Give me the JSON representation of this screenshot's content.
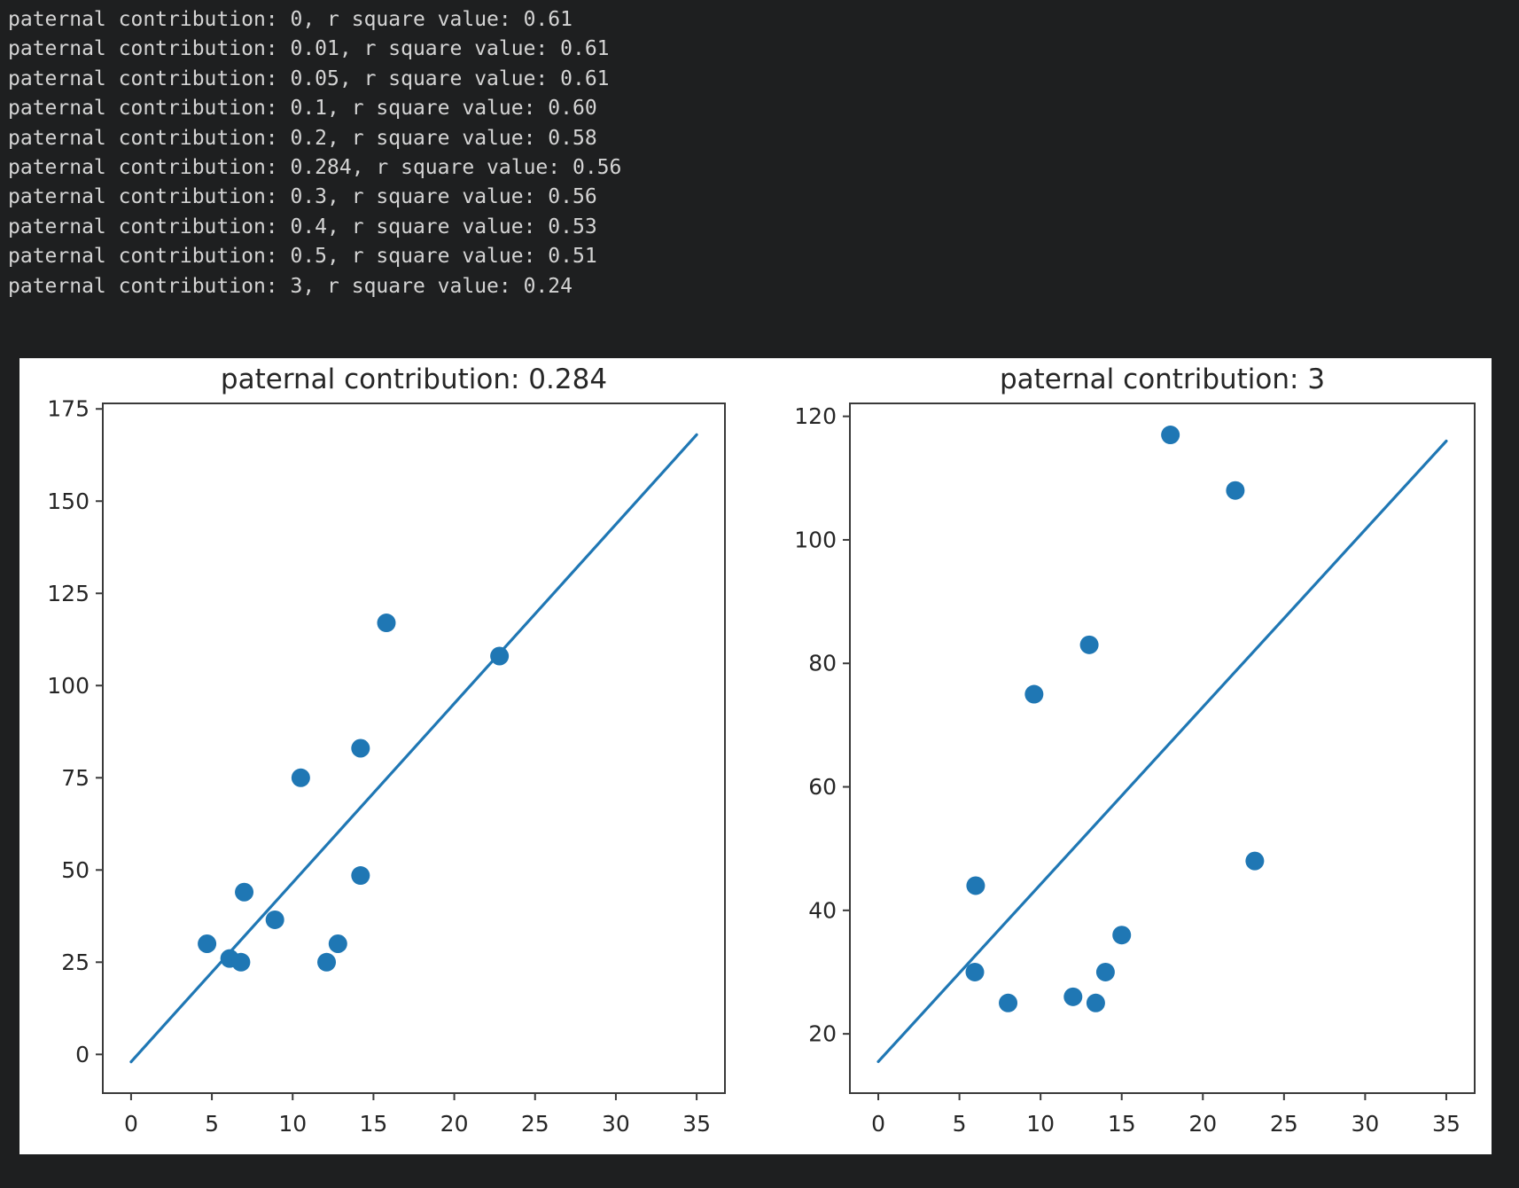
{
  "console": {
    "lines": [
      "paternal contribution: 0, r square value: 0.61",
      "paternal contribution: 0.01, r square value: 0.61",
      "paternal contribution: 0.05, r square value: 0.61",
      "paternal contribution: 0.1, r square value: 0.60",
      "paternal contribution: 0.2, r square value: 0.58",
      "paternal contribution: 0.284, r square value: 0.56",
      "paternal contribution: 0.3, r square value: 0.56",
      "paternal contribution: 0.4, r square value: 0.53",
      "paternal contribution: 0.5, r square value: 0.51",
      "paternal contribution: 3, r square value: 0.24"
    ]
  },
  "colors": {
    "page_bg": "#1e1f20",
    "terminal_text": "#d4d4d4",
    "figure_bg": "#ffffff",
    "accent_blue": "#1f77b4",
    "axis_text": "#262626",
    "frame": "#3a3a3a"
  },
  "chart_data": [
    {
      "type": "scatter",
      "title": "paternal contribution: 0.284",
      "xlabel": "",
      "ylabel": "",
      "xlim": [
        -1.75,
        36.75
      ],
      "ylim": [
        -10.5,
        176.5
      ],
      "x_ticks": [
        0,
        5,
        10,
        15,
        20,
        25,
        30,
        35
      ],
      "y_ticks": [
        0,
        25,
        50,
        75,
        100,
        125,
        150,
        175
      ],
      "grid": false,
      "legend": null,
      "points": [
        [
          4.7,
          30
        ],
        [
          6.1,
          26
        ],
        [
          6.8,
          25
        ],
        [
          7.0,
          44
        ],
        [
          8.9,
          36.5
        ],
        [
          10.5,
          75
        ],
        [
          12.1,
          25
        ],
        [
          12.8,
          30
        ],
        [
          14.2,
          48.5
        ],
        [
          14.2,
          83
        ],
        [
          15.8,
          117
        ],
        [
          22.8,
          108
        ]
      ],
      "fit_line": {
        "x": [
          0,
          35
        ],
        "y": [
          -2,
          168
        ]
      },
      "marker_color": "#1f77b4",
      "line_color": "#1f77b4"
    },
    {
      "type": "scatter",
      "title": "paternal contribution: 3",
      "xlabel": "",
      "ylabel": "",
      "xlim": [
        -1.75,
        36.75
      ],
      "ylim": [
        10.4,
        122.1
      ],
      "x_ticks": [
        0,
        5,
        10,
        15,
        20,
        25,
        30,
        35
      ],
      "y_ticks": [
        20,
        40,
        60,
        80,
        100,
        120
      ],
      "grid": false,
      "legend": null,
      "points": [
        [
          5.95,
          30
        ],
        [
          6.0,
          44
        ],
        [
          8.0,
          25
        ],
        [
          9.6,
          75
        ],
        [
          12.0,
          26
        ],
        [
          13.0,
          83
        ],
        [
          13.4,
          25
        ],
        [
          14.0,
          30
        ],
        [
          15.0,
          36
        ],
        [
          18.0,
          117
        ],
        [
          22.0,
          108
        ],
        [
          23.2,
          48
        ]
      ],
      "fit_line": {
        "x": [
          0,
          35
        ],
        "y": [
          15.5,
          116
        ]
      },
      "marker_color": "#1f77b4",
      "line_color": "#1f77b4"
    }
  ]
}
